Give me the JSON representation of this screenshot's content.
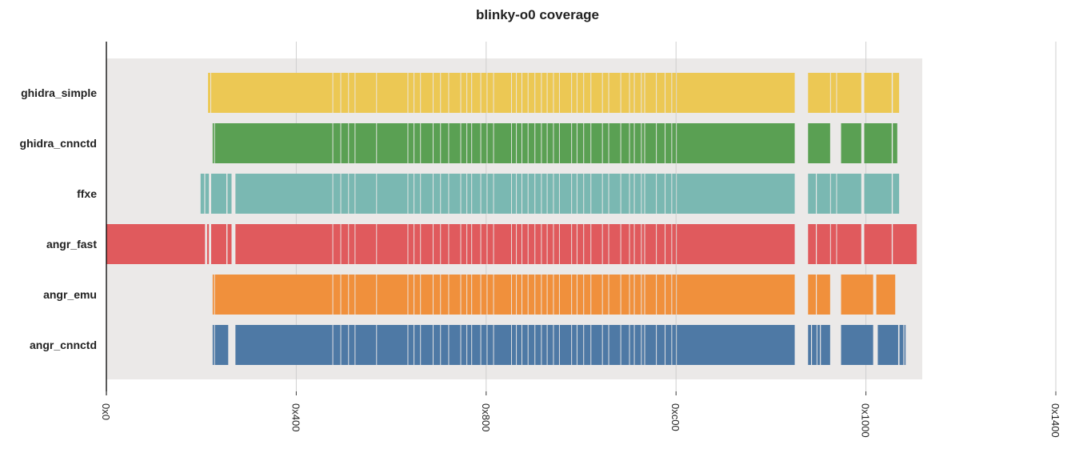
{
  "chart_data": {
    "type": "bar",
    "title": "blinky-o0 coverage",
    "xlim": [
      0,
      5120
    ],
    "xticks": [
      {
        "value": 0,
        "label": "0x0"
      },
      {
        "value": 1024,
        "label": "0x400"
      },
      {
        "value": 2048,
        "label": "0x800"
      },
      {
        "value": 3072,
        "label": "0xc00"
      },
      {
        "value": 4096,
        "label": "0x1000"
      },
      {
        "value": 5120,
        "label": "0x1400"
      }
    ],
    "grid": true,
    "coverage_region": [
      0,
      4400
    ],
    "background_color": "#ebe9e8",
    "series": [
      {
        "name": "ghidra_simple",
        "color": "#ecc854",
        "ranges": [
          [
            548,
            561
          ],
          [
            565,
            1219
          ],
          [
            1223,
            1262
          ],
          [
            1266,
            1304
          ],
          [
            1308,
            1339
          ],
          [
            1343,
            1455
          ],
          [
            1459,
            1624
          ],
          [
            1628,
            1657
          ],
          [
            1661,
            1692
          ],
          [
            1696,
            1760
          ],
          [
            1764,
            1800
          ],
          [
            1804,
            1844
          ],
          [
            1848,
            1909
          ],
          [
            1913,
            1942
          ],
          [
            1946,
            1968
          ],
          [
            1972,
            2017
          ],
          [
            2021,
            2051
          ],
          [
            2055,
            2086
          ],
          [
            2090,
            2183
          ],
          [
            2187,
            2209
          ],
          [
            2213,
            2239
          ],
          [
            2243,
            2272
          ],
          [
            2276,
            2309
          ],
          [
            2313,
            2344
          ],
          [
            2348,
            2375
          ],
          [
            2379,
            2409
          ],
          [
            2413,
            2441
          ],
          [
            2445,
            2507
          ],
          [
            2511,
            2536
          ],
          [
            2540,
            2572
          ],
          [
            2576,
            2611
          ],
          [
            2615,
            2673
          ],
          [
            2677,
            2707
          ],
          [
            2711,
            2772
          ],
          [
            2776,
            2819
          ],
          [
            2823,
            2845
          ],
          [
            2849,
            2883
          ],
          [
            2887,
            2901
          ],
          [
            2905,
            2964
          ],
          [
            2968,
            3011
          ],
          [
            3015,
            3047
          ],
          [
            3051,
            3072
          ],
          [
            3076,
            3712
          ],
          [
            3784,
            3903
          ],
          [
            3907,
            3936
          ],
          [
            3940,
            4071
          ],
          [
            4087,
            4235
          ],
          [
            4241,
            4275
          ]
        ]
      },
      {
        "name": "ghidra_cnnctd",
        "color": "#5aa053",
        "ranges": [
          [
            573,
            581
          ],
          [
            585,
            1219
          ],
          [
            1223,
            1262
          ],
          [
            1266,
            1304
          ],
          [
            1308,
            1339
          ],
          [
            1343,
            1455
          ],
          [
            1459,
            1624
          ],
          [
            1628,
            1657
          ],
          [
            1661,
            1692
          ],
          [
            1696,
            1760
          ],
          [
            1764,
            1800
          ],
          [
            1804,
            1844
          ],
          [
            1848,
            1909
          ],
          [
            1913,
            1942
          ],
          [
            1946,
            1968
          ],
          [
            1972,
            2017
          ],
          [
            2021,
            2051
          ],
          [
            2055,
            2086
          ],
          [
            2090,
            2183
          ],
          [
            2187,
            2209
          ],
          [
            2213,
            2239
          ],
          [
            2243,
            2272
          ],
          [
            2276,
            2309
          ],
          [
            2313,
            2344
          ],
          [
            2348,
            2375
          ],
          [
            2379,
            2409
          ],
          [
            2413,
            2441
          ],
          [
            2445,
            2507
          ],
          [
            2511,
            2536
          ],
          [
            2540,
            2572
          ],
          [
            2576,
            2611
          ],
          [
            2615,
            2673
          ],
          [
            2677,
            2707
          ],
          [
            2711,
            2772
          ],
          [
            2776,
            2819
          ],
          [
            2823,
            2845
          ],
          [
            2849,
            2883
          ],
          [
            2887,
            2901
          ],
          [
            2905,
            2964
          ],
          [
            2968,
            3011
          ],
          [
            3015,
            3047
          ],
          [
            3051,
            3072
          ],
          [
            3076,
            3712
          ],
          [
            3784,
            3903
          ],
          [
            3962,
            4071
          ],
          [
            4087,
            4235
          ],
          [
            4241,
            4265
          ]
        ]
      },
      {
        "name": "ffxe",
        "color": "#7ab8b2",
        "ranges": [
          [
            508,
            528
          ],
          [
            533,
            553
          ],
          [
            565,
            647
          ],
          [
            653,
            675
          ],
          [
            696,
            1219
          ],
          [
            1223,
            1262
          ],
          [
            1266,
            1304
          ],
          [
            1308,
            1339
          ],
          [
            1343,
            1455
          ],
          [
            1459,
            1624
          ],
          [
            1628,
            1657
          ],
          [
            1661,
            1692
          ],
          [
            1696,
            1760
          ],
          [
            1764,
            1800
          ],
          [
            1804,
            1844
          ],
          [
            1848,
            1909
          ],
          [
            1913,
            1942
          ],
          [
            1946,
            1968
          ],
          [
            1972,
            2017
          ],
          [
            2021,
            2051
          ],
          [
            2055,
            2086
          ],
          [
            2090,
            2183
          ],
          [
            2187,
            2209
          ],
          [
            2213,
            2239
          ],
          [
            2243,
            2272
          ],
          [
            2276,
            2309
          ],
          [
            2313,
            2344
          ],
          [
            2348,
            2375
          ],
          [
            2379,
            2409
          ],
          [
            2413,
            2441
          ],
          [
            2445,
            2507
          ],
          [
            2511,
            2536
          ],
          [
            2540,
            2572
          ],
          [
            2576,
            2611
          ],
          [
            2615,
            2673
          ],
          [
            2677,
            2707
          ],
          [
            2711,
            2772
          ],
          [
            2776,
            2819
          ],
          [
            2823,
            2845
          ],
          [
            2849,
            2883
          ],
          [
            2887,
            2901
          ],
          [
            2905,
            2964
          ],
          [
            2968,
            3011
          ],
          [
            3015,
            3047
          ],
          [
            3051,
            3072
          ],
          [
            3076,
            3712
          ],
          [
            3784,
            3826
          ],
          [
            3831,
            3903
          ],
          [
            3907,
            3936
          ],
          [
            3940,
            4071
          ],
          [
            4087,
            4235
          ],
          [
            4241,
            4275
          ]
        ]
      },
      {
        "name": "angr_fast",
        "color": "#e05a5d",
        "ranges": [
          [
            0,
            532
          ],
          [
            543,
            553
          ],
          [
            565,
            647
          ],
          [
            653,
            675
          ],
          [
            696,
            1219
          ],
          [
            1223,
            1262
          ],
          [
            1266,
            1304
          ],
          [
            1308,
            1339
          ],
          [
            1343,
            1455
          ],
          [
            1459,
            1624
          ],
          [
            1628,
            1657
          ],
          [
            1661,
            1692
          ],
          [
            1696,
            1760
          ],
          [
            1764,
            1800
          ],
          [
            1804,
            1844
          ],
          [
            1848,
            1909
          ],
          [
            1913,
            1942
          ],
          [
            1946,
            1968
          ],
          [
            1972,
            2017
          ],
          [
            2021,
            2051
          ],
          [
            2055,
            2086
          ],
          [
            2090,
            2183
          ],
          [
            2187,
            2209
          ],
          [
            2213,
            2239
          ],
          [
            2243,
            2272
          ],
          [
            2276,
            2309
          ],
          [
            2313,
            2344
          ],
          [
            2348,
            2375
          ],
          [
            2379,
            2409
          ],
          [
            2413,
            2441
          ],
          [
            2445,
            2507
          ],
          [
            2511,
            2536
          ],
          [
            2540,
            2572
          ],
          [
            2576,
            2611
          ],
          [
            2615,
            2673
          ],
          [
            2677,
            2707
          ],
          [
            2711,
            2772
          ],
          [
            2776,
            2819
          ],
          [
            2823,
            2845
          ],
          [
            2849,
            2883
          ],
          [
            2887,
            2901
          ],
          [
            2905,
            2964
          ],
          [
            2968,
            3011
          ],
          [
            3015,
            3047
          ],
          [
            3051,
            3072
          ],
          [
            3076,
            3712
          ],
          [
            3784,
            3826
          ],
          [
            3831,
            3903
          ],
          [
            3907,
            3936
          ],
          [
            3940,
            4071
          ],
          [
            4087,
            4235
          ],
          [
            4241,
            4370
          ]
        ]
      },
      {
        "name": "angr_emu",
        "color": "#f0903c",
        "ranges": [
          [
            573,
            581
          ],
          [
            585,
            1219
          ],
          [
            1223,
            1262
          ],
          [
            1266,
            1304
          ],
          [
            1308,
            1339
          ],
          [
            1343,
            1455
          ],
          [
            1459,
            1624
          ],
          [
            1628,
            1657
          ],
          [
            1661,
            1692
          ],
          [
            1696,
            1760
          ],
          [
            1764,
            1800
          ],
          [
            1804,
            1844
          ],
          [
            1848,
            1909
          ],
          [
            1913,
            1942
          ],
          [
            1946,
            1968
          ],
          [
            1972,
            2017
          ],
          [
            2021,
            2051
          ],
          [
            2055,
            2086
          ],
          [
            2090,
            2183
          ],
          [
            2187,
            2209
          ],
          [
            2213,
            2239
          ],
          [
            2243,
            2272
          ],
          [
            2276,
            2309
          ],
          [
            2313,
            2344
          ],
          [
            2348,
            2375
          ],
          [
            2379,
            2409
          ],
          [
            2413,
            2441
          ],
          [
            2445,
            2507
          ],
          [
            2511,
            2536
          ],
          [
            2540,
            2572
          ],
          [
            2576,
            2611
          ],
          [
            2615,
            2673
          ],
          [
            2677,
            2707
          ],
          [
            2711,
            2772
          ],
          [
            2776,
            2819
          ],
          [
            2823,
            2845
          ],
          [
            2849,
            2883
          ],
          [
            2887,
            2901
          ],
          [
            2905,
            2964
          ],
          [
            2968,
            3011
          ],
          [
            3015,
            3047
          ],
          [
            3051,
            3072
          ],
          [
            3076,
            3712
          ],
          [
            3784,
            3826
          ],
          [
            3831,
            3903
          ],
          [
            3962,
            4135
          ],
          [
            4152,
            4254
          ]
        ]
      },
      {
        "name": "angr_cnnctd",
        "color": "#4e79a5",
        "ranges": [
          [
            573,
            581
          ],
          [
            585,
            657
          ],
          [
            696,
            1219
          ],
          [
            1223,
            1262
          ],
          [
            1266,
            1304
          ],
          [
            1308,
            1339
          ],
          [
            1343,
            1455
          ],
          [
            1459,
            1624
          ],
          [
            1628,
            1657
          ],
          [
            1661,
            1692
          ],
          [
            1696,
            1760
          ],
          [
            1764,
            1800
          ],
          [
            1804,
            1844
          ],
          [
            1848,
            1909
          ],
          [
            1913,
            1942
          ],
          [
            1946,
            1968
          ],
          [
            1972,
            2017
          ],
          [
            2021,
            2051
          ],
          [
            2055,
            2086
          ],
          [
            2090,
            2183
          ],
          [
            2187,
            2209
          ],
          [
            2213,
            2239
          ],
          [
            2243,
            2272
          ],
          [
            2276,
            2309
          ],
          [
            2313,
            2344
          ],
          [
            2348,
            2375
          ],
          [
            2379,
            2409
          ],
          [
            2413,
            2441
          ],
          [
            2445,
            2507
          ],
          [
            2511,
            2536
          ],
          [
            2540,
            2572
          ],
          [
            2576,
            2611
          ],
          [
            2615,
            2673
          ],
          [
            2677,
            2707
          ],
          [
            2711,
            2772
          ],
          [
            2776,
            2819
          ],
          [
            2823,
            2845
          ],
          [
            2849,
            2883
          ],
          [
            2887,
            2901
          ],
          [
            2905,
            2964
          ],
          [
            2968,
            3011
          ],
          [
            3015,
            3047
          ],
          [
            3051,
            3072
          ],
          [
            3076,
            3712
          ],
          [
            3784,
            3800
          ],
          [
            3805,
            3830
          ],
          [
            3834,
            3848
          ],
          [
            3853,
            3903
          ],
          [
            3962,
            4135
          ],
          [
            4160,
            4270
          ],
          [
            4277,
            4298
          ],
          [
            4303,
            4310
          ]
        ]
      }
    ]
  }
}
